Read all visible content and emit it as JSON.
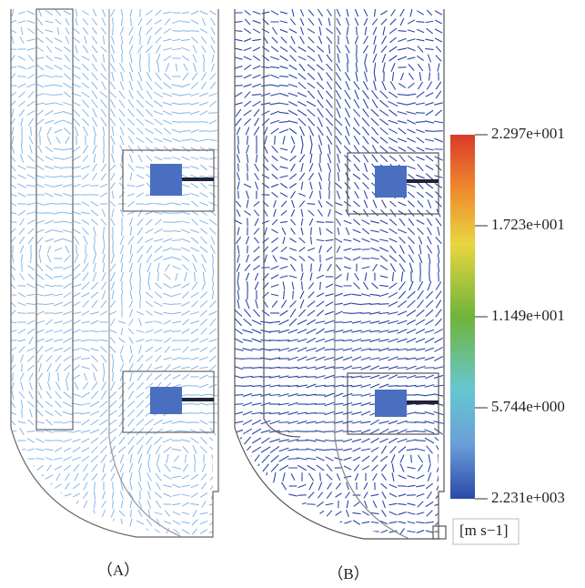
{
  "panels": [
    {
      "label": "（A）"
    },
    {
      "label": "（B）"
    }
  ],
  "colorbar": {
    "labels": [
      "2.297e+001",
      "1.723e+001",
      "1.149e+001",
      "5.744e+000",
      "2.231e+003"
    ],
    "unit": "[m s−1]"
  }
}
